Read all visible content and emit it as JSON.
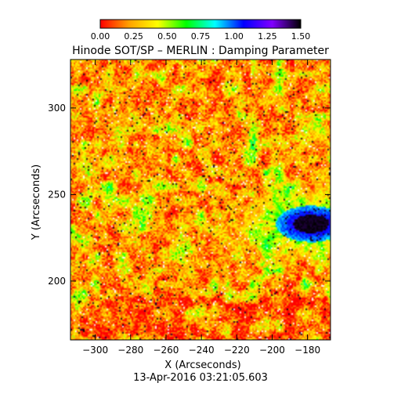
{
  "chart_data": {
    "type": "heatmap",
    "title": "Hinode SOT/SP – MERLIN : Damping Parameter",
    "xlabel": "X (Arcseconds)",
    "ylabel": "Y (Arcseconds)",
    "subtitle": "13-Apr-2016 03:21:05.603",
    "xlim": [
      -314,
      -167
    ],
    "ylim": [
      166,
      328
    ],
    "xticks": [
      -300,
      -280,
      -260,
      -240,
      -220,
      -200,
      -180
    ],
    "xtick_labels": [
      "−300",
      "−280",
      "−260",
      "−240",
      "−220",
      "−200",
      "−180"
    ],
    "yticks": [
      200,
      250,
      300
    ],
    "ytick_labels": [
      "200",
      "250",
      "300"
    ],
    "colorbar": {
      "range": [
        0,
        1.5
      ],
      "ticks": [
        "0.00",
        "0.25",
        "0.50",
        "0.75",
        "1.00",
        "1.25",
        "1.50"
      ],
      "colors": [
        "#ff0000",
        "#ffa000",
        "#ffff00",
        "#00ff00",
        "#00ffff",
        "#0000ff",
        "#8000ff",
        "#000000"
      ]
    },
    "features": {
      "sunspot_center": [
        -178,
        233
      ],
      "sunspot_umbra_value": 1.5,
      "sunspot_penumbra_value": 0.8,
      "quiet_sun_value": 0.2
    }
  }
}
